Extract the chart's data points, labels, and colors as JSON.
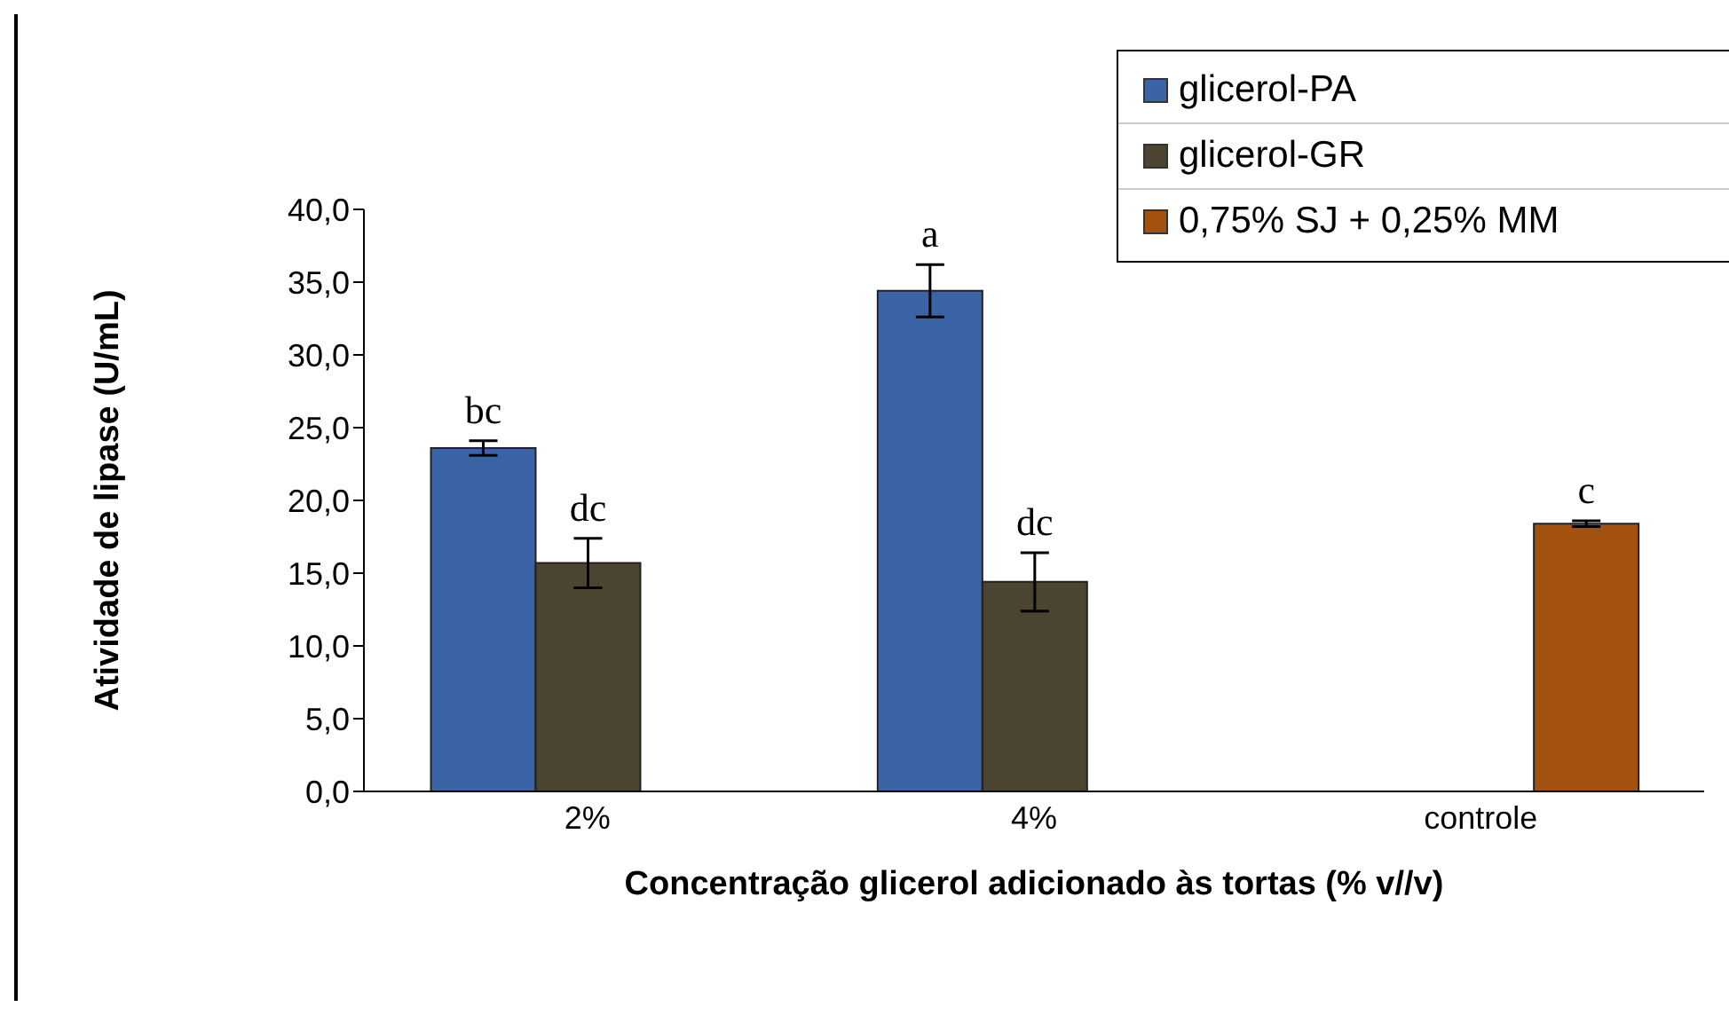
{
  "chart_data": {
    "type": "bar",
    "xlabel": "Concentração glicerol adicionado às tortas (% v//v)",
    "ylabel": "Atividade de lipase (U/mL)",
    "categories": [
      "2%",
      "4%",
      "controle"
    ],
    "series": [
      {
        "name": "glicerol-PA",
        "color": "#3b64a6",
        "values": [
          23.6,
          34.4,
          null
        ],
        "errors": [
          0.5,
          1.8,
          null
        ],
        "value_labels": [
          "bc",
          "a",
          null
        ]
      },
      {
        "name": "glicerol-GR",
        "color": "#4a4431",
        "values": [
          15.7,
          14.4,
          null
        ],
        "errors": [
          1.7,
          2.0,
          null
        ],
        "value_labels": [
          "dc",
          "dc",
          null
        ]
      },
      {
        "name": "0,75% SJ + 0,25% MM",
        "color": "#a3520f",
        "values": [
          null,
          null,
          18.4
        ],
        "errors": [
          null,
          null,
          0.2
        ],
        "value_labels": [
          null,
          null,
          "c"
        ]
      }
    ],
    "ylim": [
      0,
      40
    ],
    "yticks": [
      {
        "value": 0,
        "label": "0,0"
      },
      {
        "value": 5,
        "label": "5,0"
      },
      {
        "value": 10,
        "label": "10,0"
      },
      {
        "value": 15,
        "label": "15,0"
      },
      {
        "value": 20,
        "label": "20,0"
      },
      {
        "value": 25,
        "label": "25,0"
      },
      {
        "value": 30,
        "label": "30,0"
      },
      {
        "value": 35,
        "label": "35,0"
      },
      {
        "value": 40,
        "label": "40,0"
      }
    ],
    "grid": false,
    "legend": "top right"
  }
}
